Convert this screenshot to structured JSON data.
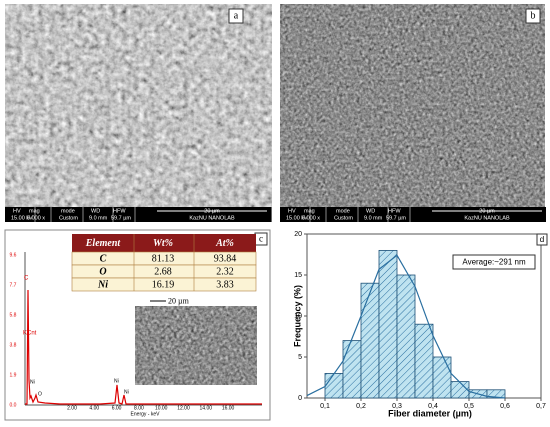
{
  "panels": {
    "a": "a",
    "b": "b",
    "c": "c",
    "d": "d"
  },
  "sem_bar": {
    "labels": [
      "HV",
      "mag",
      "mode",
      "WD",
      "HFW"
    ],
    "values": [
      "15.00 kV",
      "5 000 x",
      "Custom",
      "9.0 mm",
      "59.7 µm"
    ],
    "scale": "20 µm",
    "lab": "KazNU NANOLAB"
  },
  "eds": {
    "counts_label": "KCnt",
    "x_label": "Energy - keV",
    "xticks": [
      "2.00",
      "4.00",
      "6.00",
      "8.00",
      "10.00",
      "12.00",
      "14.00",
      "16.00"
    ],
    "yticks": [
      "9.6",
      "7.7",
      "5.8",
      "3.8",
      "1.9",
      "0.0"
    ],
    "peaks": [
      "C",
      "O",
      "Ni",
      "Ni",
      "Ni"
    ],
    "inset_scale": "20 µm"
  },
  "table": {
    "header": [
      "Element",
      "Wt%",
      "At%"
    ],
    "rows": [
      [
        "C",
        "81.13",
        "93.84"
      ],
      [
        "O",
        "2.68",
        "2.32"
      ],
      [
        "Ni",
        "16.19",
        "3.83"
      ]
    ]
  },
  "chart_data": {
    "type": "histogram",
    "annotation": "Average:~291 nm",
    "xlabel": "Fiber diameter (µm)",
    "ylabel": "Frequency (%)",
    "bins": [
      0.1,
      0.15,
      0.2,
      0.25,
      0.3,
      0.35,
      0.4,
      0.45,
      0.5,
      0.55,
      0.6
    ],
    "values": [
      3,
      7,
      14,
      18,
      15,
      9,
      5,
      2,
      1,
      1
    ],
    "color": "#bfe3f0",
    "fit": {
      "x": [
        0.05,
        0.1,
        0.15,
        0.2,
        0.25,
        0.3,
        0.35,
        0.4,
        0.45,
        0.5,
        0.55,
        0.6
      ],
      "y": [
        0.3,
        1.4,
        4.5,
        10.0,
        15.7,
        17.4,
        13.6,
        7.6,
        3.0,
        0.8,
        0.2,
        0.0
      ],
      "color": "#2a6fa0"
    },
    "xlim": [
      0.05,
      0.7
    ],
    "ylim": [
      0,
      20
    ],
    "xticks": [
      {
        "value": 0.1,
        "label": "0,1"
      },
      {
        "value": 0.2,
        "label": "0,2"
      },
      {
        "value": 0.3,
        "label": "0,3"
      },
      {
        "value": 0.4,
        "label": "0,4"
      },
      {
        "value": 0.5,
        "label": "0,5"
      },
      {
        "value": 0.6,
        "label": "0,6"
      },
      {
        "value": 0.7,
        "label": "0,7"
      }
    ],
    "yticks": [
      0,
      5,
      10,
      15,
      20
    ]
  }
}
